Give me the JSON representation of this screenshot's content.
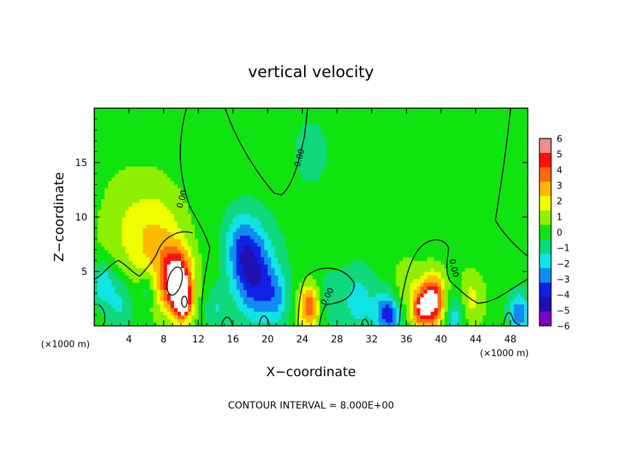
{
  "chart_data": {
    "type": "heatmap",
    "title": "vertical velocity",
    "xlabel": "X−coordinate",
    "ylabel": "Z−coordinate",
    "x_unit_label": "(×1000 m)",
    "y_unit_label": "(×1000 m)",
    "xlim": [
      0,
      50
    ],
    "ylim": [
      0,
      20
    ],
    "x_ticks": [
      4,
      8,
      12,
      16,
      20,
      24,
      28,
      32,
      36,
      40,
      44,
      48
    ],
    "y_ticks": [
      5,
      10,
      15
    ],
    "color_scale": {
      "ticks": [
        "6",
        "5",
        "4",
        "3",
        "2",
        "1",
        "0",
        "−1",
        "−2",
        "−3",
        "−4",
        "−5",
        "−6"
      ],
      "colors": [
        "#f08c8c",
        "#ff1010",
        "#ff6a10",
        "#ffb800",
        "#f0ff00",
        "#8ef000",
        "#10e410",
        "#10d87c",
        "#10e4e4",
        "#108cf0",
        "#1020e4",
        "#2010b0",
        "#8000c8"
      ]
    },
    "contour_level_label": "0.00",
    "contour_labels": [
      "0.00",
      "0.00",
      "0.00",
      "0.00"
    ],
    "footer": "CONTOUR INTERVAL = 8.000E+00",
    "features": [
      {
        "x": 9.5,
        "z": 4.2,
        "w": 3.5,
        "peak": 6.5
      },
      {
        "x": 10.2,
        "z": 2.2,
        "w": 2.0,
        "peak": 5.5
      },
      {
        "x": 7.5,
        "z": 7.5,
        "w": 6.0,
        "peak": 2.2
      },
      {
        "x": 4.0,
        "z": 8.5,
        "w": 7.0,
        "peak": 1.3
      },
      {
        "x": 18.5,
        "z": 4.5,
        "w": 5.0,
        "peak": -4.2
      },
      {
        "x": 17.0,
        "z": 7.5,
        "w": 4.0,
        "peak": -2.5
      },
      {
        "x": 21.0,
        "z": 2.5,
        "w": 3.0,
        "peak": -2.0
      },
      {
        "x": 24.8,
        "z": 1.8,
        "w": 2.5,
        "peak": 4.5
      },
      {
        "x": 39.0,
        "z": 2.3,
        "w": 3.0,
        "peak": 6.2
      },
      {
        "x": 37.5,
        "z": 1.5,
        "w": 2.0,
        "peak": 3.5
      },
      {
        "x": 3.0,
        "z": 2.2,
        "w": 3.5,
        "peak": -2.0
      },
      {
        "x": 1.0,
        "z": 4.0,
        "w": 2.5,
        "peak": -2.3
      },
      {
        "x": 6.0,
        "z": 3.5,
        "w": 2.0,
        "peak": -1.8
      },
      {
        "x": 30.5,
        "z": 2.2,
        "w": 4.0,
        "peak": -2.0
      },
      {
        "x": 33.5,
        "z": 1.3,
        "w": 2.5,
        "peak": -3.0
      },
      {
        "x": 34.5,
        "z": 0.8,
        "w": 2.0,
        "peak": -2.2
      },
      {
        "x": 49.0,
        "z": 1.2,
        "w": 2.5,
        "peak": -3.2
      },
      {
        "x": 41.5,
        "z": 1.0,
        "w": 2.5,
        "peak": -2.3
      },
      {
        "x": 43.5,
        "z": 2.5,
        "w": 3.0,
        "peak": 1.8
      },
      {
        "x": 27.0,
        "z": 2.5,
        "w": 3.0,
        "peak": -1.2
      },
      {
        "x": 14.0,
        "z": 1.5,
        "w": 2.5,
        "peak": -1.5
      },
      {
        "x": 36.0,
        "z": 4.0,
        "w": 3.0,
        "peak": 1.2
      },
      {
        "x": 25.0,
        "z": 16.0,
        "w": 12.0,
        "peak": -0.6
      }
    ]
  }
}
